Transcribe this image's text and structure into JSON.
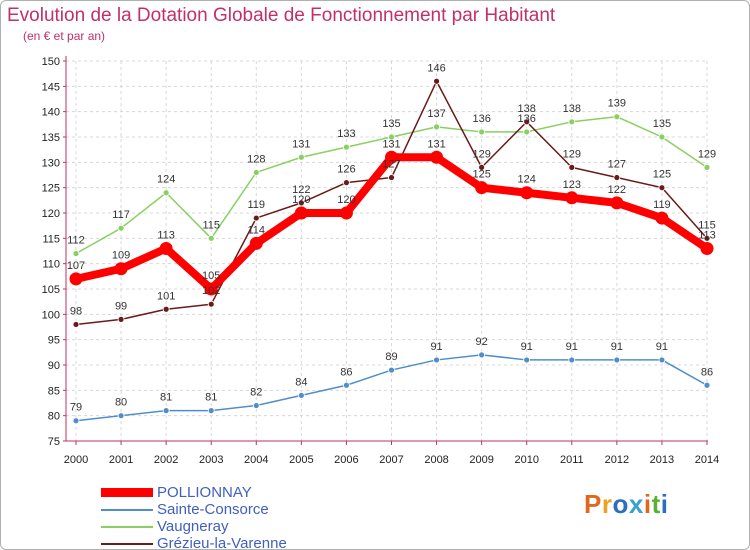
{
  "title": "Evolution de la Dotation Globale de Fonctionnement par Habitant",
  "subtitle": "(en € et par an)",
  "logo": {
    "text": "Proxiti",
    "colors": [
      "#e0681e",
      "#f0a020",
      "#2a6fc0",
      "#3aa0d0",
      "#e0681e",
      "#5ab030",
      "#2a6fc0"
    ]
  },
  "chart_data": {
    "type": "line",
    "categories": [
      "2000",
      "2001",
      "2002",
      "2003",
      "2004",
      "2005",
      "2006",
      "2007",
      "2008",
      "2009",
      "2010",
      "2011",
      "2012",
      "2013",
      "2014"
    ],
    "ylim": [
      75,
      150
    ],
    "yticks": [
      "75",
      "80",
      "85",
      "90",
      "95",
      "100",
      "105",
      "110",
      "115",
      "120",
      "125",
      "130",
      "135",
      "140",
      "145",
      "150"
    ],
    "grid": true,
    "legend_position": "bottom-left",
    "series": [
      {
        "name": "POLLIONNAY",
        "color": "#ff0000",
        "values": [
          107,
          109,
          113,
          105,
          114,
          120,
          120,
          131,
          131,
          125,
          124,
          123,
          122,
          119,
          113
        ]
      },
      {
        "name": "Sainte-Consorce",
        "color": "#4f8ec9",
        "values": [
          79,
          80,
          81,
          81,
          82,
          84,
          86,
          89,
          91,
          92,
          91,
          91,
          91,
          91,
          86
        ]
      },
      {
        "name": "Vaugneray",
        "color": "#88d060",
        "values": [
          112,
          117,
          124,
          115,
          128,
          131,
          133,
          135,
          137,
          136,
          136,
          138,
          139,
          135,
          129
        ]
      },
      {
        "name": "Grézieu-la-Varenne",
        "color": "#6b1a1a",
        "values": [
          98,
          99,
          101,
          102,
          119,
          122,
          126,
          127,
          146,
          129,
          138,
          129,
          127,
          125,
          115
        ]
      }
    ]
  }
}
